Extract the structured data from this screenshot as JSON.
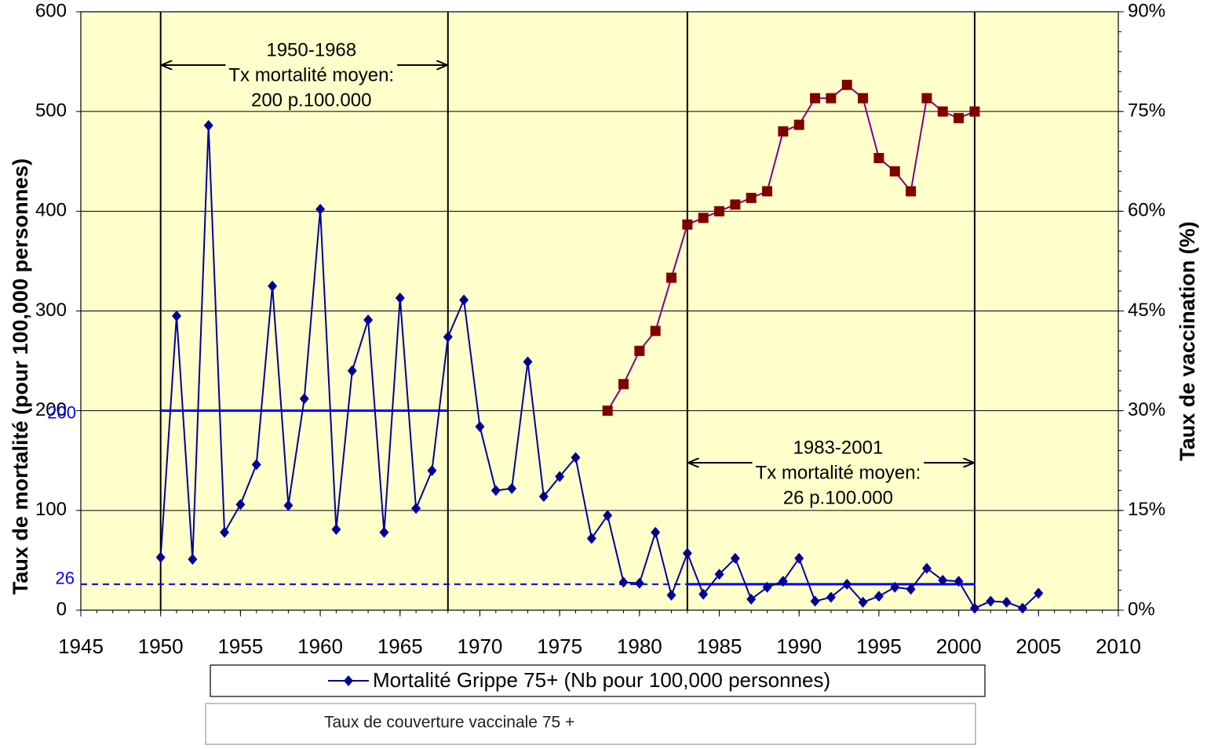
{
  "chart_data": {
    "type": "line",
    "ylabel": "Taux de mortalité (pour 100,000 personnes)",
    "y2label": "Taux de vaccination (%)",
    "xlim": [
      1945,
      2010
    ],
    "xticks": [
      1945,
      1950,
      1955,
      1960,
      1965,
      1970,
      1975,
      1980,
      1985,
      1990,
      1995,
      2000,
      2005,
      2010
    ],
    "ylim": [
      0,
      600
    ],
    "yticks": [
      0,
      100,
      200,
      300,
      400,
      500,
      600
    ],
    "y2lim": [
      0,
      90
    ],
    "y2ticks": [
      {
        "value": 0,
        "label": "0%"
      },
      {
        "value": 15,
        "label": "15%"
      },
      {
        "value": 30,
        "label": "30%"
      },
      {
        "value": 45,
        "label": "45%"
      },
      {
        "value": 60,
        "label": "60%"
      },
      {
        "value": 75,
        "label": "75%"
      },
      {
        "value": 90,
        "label": "90%"
      }
    ],
    "grid": true,
    "background": "#ffffcc",
    "series": [
      {
        "name": "Mortalité Grippe 75+ (Nb pour 100,000 personnes)",
        "color": "#000099",
        "marker": "diamond",
        "x": [
          1950,
          1951,
          1952,
          1953,
          1954,
          1955,
          1956,
          1957,
          1958,
          1959,
          1960,
          1961,
          1962,
          1963,
          1964,
          1965,
          1966,
          1967,
          1968,
          1969,
          1970,
          1971,
          1972,
          1973,
          1974,
          1975,
          1976,
          1977,
          1978,
          1979,
          1980,
          1981,
          1982,
          1983,
          1984,
          1985,
          1986,
          1987,
          1988,
          1989,
          1990,
          1991,
          1992,
          1993,
          1994,
          1995,
          1996,
          1997,
          1998,
          1999,
          2000,
          2001,
          2002,
          2003,
          2004,
          2005
        ],
        "values": [
          53,
          295,
          51,
          486,
          78,
          106,
          146,
          325,
          105,
          212,
          402,
          81,
          240,
          291,
          78,
          313,
          102,
          140,
          274,
          311,
          184,
          120,
          122,
          249,
          114,
          134,
          153,
          72,
          95,
          28,
          27,
          78,
          15,
          57,
          16,
          36,
          52,
          11,
          23,
          29,
          52,
          9,
          13,
          26,
          8,
          14,
          23,
          21,
          42,
          30,
          29,
          2,
          9,
          8,
          2,
          17
        ]
      },
      {
        "name": "Taux de couverture vaccinale 75 +",
        "color": "#800080",
        "marker_color": "#800000",
        "marker": "square",
        "axis": "y2",
        "x": [
          1978,
          1979,
          1980,
          1981,
          1982,
          1983,
          1984,
          1985,
          1986,
          1987,
          1988,
          1989,
          1990,
          1991,
          1992,
          1993,
          1994,
          1995,
          1996,
          1997,
          1998,
          1999,
          2000,
          2001
        ],
        "values": [
          30,
          34,
          39,
          42,
          50,
          58,
          59,
          60,
          61,
          62,
          63,
          72,
          73,
          77,
          77,
          79,
          77,
          68,
          66,
          63,
          77,
          75,
          74,
          75
        ]
      }
    ],
    "periods": [
      {
        "start": 1950,
        "end": 1968,
        "mean": 200,
        "mean_color": "#0000ff",
        "lines": [
          "1950-1968",
          "Tx mortalité moyen:",
          "200 p.100.000"
        ]
      },
      {
        "start": 1983,
        "end": 2001,
        "mean": 26,
        "mean_color": "#0000ff",
        "dashed_lead": true,
        "lines": [
          "1983-2001",
          "Tx mortalité moyen:",
          "26 p.100.000"
        ]
      }
    ]
  }
}
